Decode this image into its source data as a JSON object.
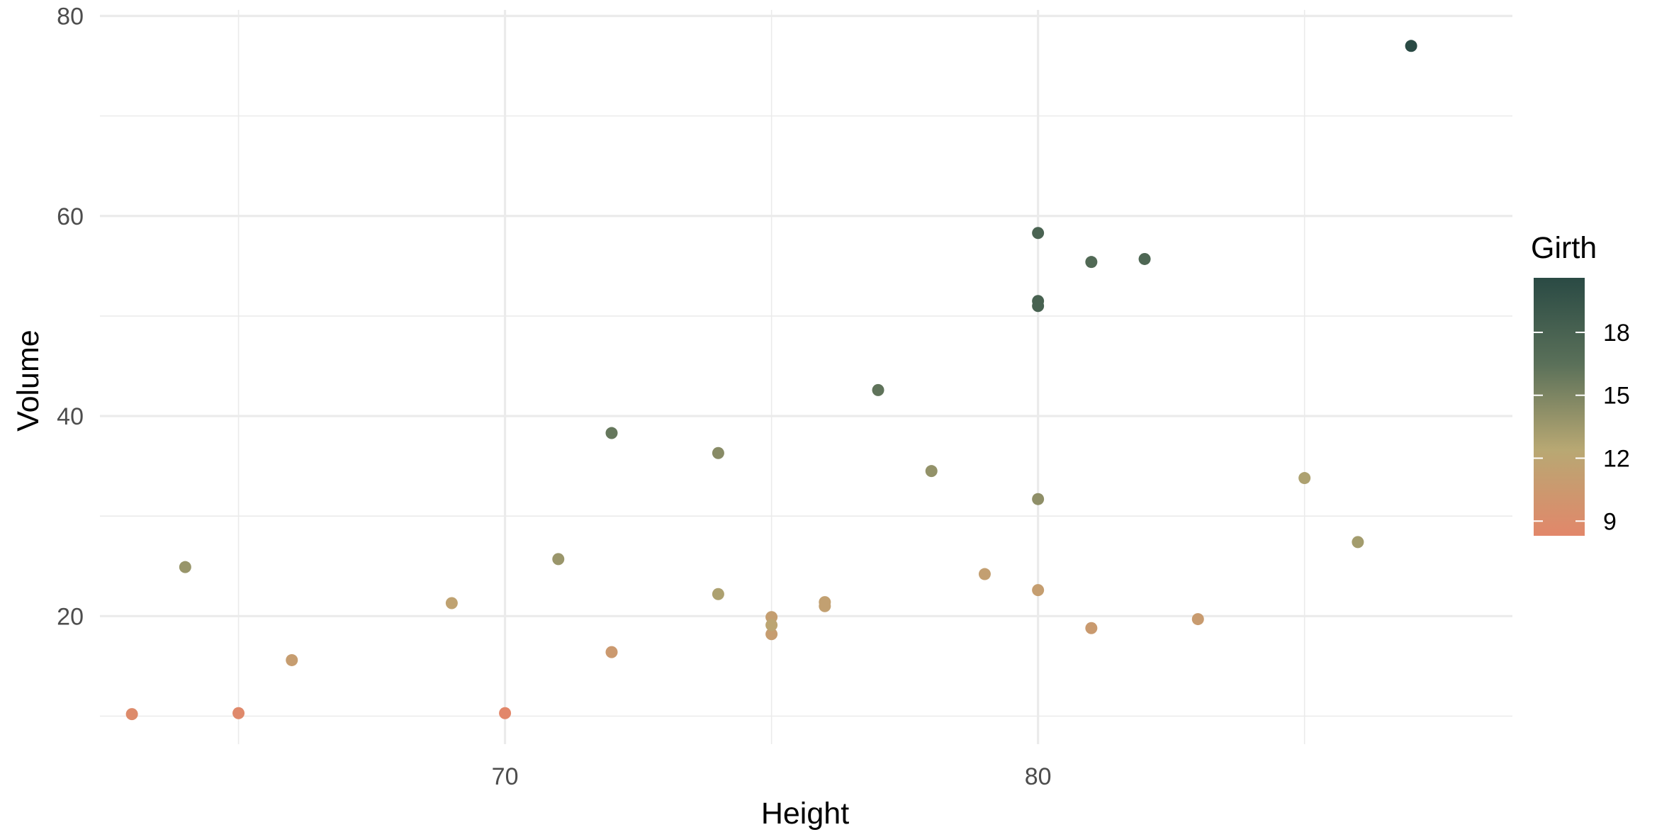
{
  "chart_data": {
    "type": "scatter",
    "xlabel": "Height",
    "ylabel": "Volume",
    "xlim": [
      62.4,
      88.9
    ],
    "ylim": [
      7.2,
      80.6
    ],
    "x_ticks": [
      70,
      80
    ],
    "x_minor_ticks": [
      65,
      75,
      85
    ],
    "y_ticks": [
      20,
      40,
      60,
      80
    ],
    "y_minor_ticks": [
      10,
      30,
      50,
      70
    ],
    "grid": true,
    "legend": {
      "title": "Girth",
      "type": "colorbar",
      "position": "right",
      "range": [
        8.3,
        20.6
      ],
      "ticks": [
        9,
        12,
        15,
        18
      ],
      "colors": [
        "#e2876a",
        "#b8a873",
        "#5a7059",
        "#2a4a44"
      ]
    },
    "points": [
      {
        "x": 70,
        "y": 10.3,
        "girth": 8.3
      },
      {
        "x": 65,
        "y": 10.3,
        "girth": 8.6
      },
      {
        "x": 63,
        "y": 10.2,
        "girth": 8.8
      },
      {
        "x": 72,
        "y": 16.4,
        "girth": 10.5
      },
      {
        "x": 81,
        "y": 18.8,
        "girth": 10.7
      },
      {
        "x": 83,
        "y": 19.7,
        "girth": 10.8
      },
      {
        "x": 66,
        "y": 15.6,
        "girth": 11.0
      },
      {
        "x": 75,
        "y": 18.2,
        "girth": 11.0
      },
      {
        "x": 80,
        "y": 22.6,
        "girth": 11.1
      },
      {
        "x": 75,
        "y": 19.9,
        "girth": 11.2
      },
      {
        "x": 79,
        "y": 24.2,
        "girth": 11.3
      },
      {
        "x": 76,
        "y": 21.0,
        "girth": 11.4
      },
      {
        "x": 76,
        "y": 21.4,
        "girth": 11.4
      },
      {
        "x": 69,
        "y": 21.3,
        "girth": 11.7
      },
      {
        "x": 75,
        "y": 19.1,
        "girth": 12.0
      },
      {
        "x": 74,
        "y": 22.2,
        "girth": 12.9
      },
      {
        "x": 85,
        "y": 33.8,
        "girth": 12.9
      },
      {
        "x": 86,
        "y": 27.4,
        "girth": 13.3
      },
      {
        "x": 71,
        "y": 25.7,
        "girth": 13.7
      },
      {
        "x": 64,
        "y": 24.9,
        "girth": 13.8
      },
      {
        "x": 78,
        "y": 34.5,
        "girth": 14.0
      },
      {
        "x": 80,
        "y": 31.7,
        "girth": 14.2
      },
      {
        "x": 74,
        "y": 36.3,
        "girth": 14.5
      },
      {
        "x": 72,
        "y": 38.3,
        "girth": 16.0
      },
      {
        "x": 77,
        "y": 42.6,
        "girth": 16.3
      },
      {
        "x": 81,
        "y": 55.4,
        "girth": 17.3
      },
      {
        "x": 82,
        "y": 55.7,
        "girth": 17.5
      },
      {
        "x": 80,
        "y": 58.3,
        "girth": 17.9
      },
      {
        "x": 80,
        "y": 51.5,
        "girth": 18.0
      },
      {
        "x": 80,
        "y": 51.0,
        "girth": 18.0
      },
      {
        "x": 87,
        "y": 77.0,
        "girth": 20.6
      }
    ]
  }
}
